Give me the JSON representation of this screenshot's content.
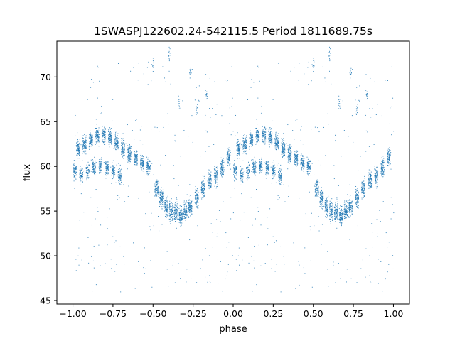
{
  "chart_data": {
    "type": "scatter",
    "title": "1SWASPJ122602.24-542115.5 Period 1811689.75s",
    "xlabel": "phase",
    "ylabel": "flux",
    "xlim": [
      -1.1,
      1.1
    ],
    "ylim": [
      44.6,
      74.0
    ],
    "x_ticks": [
      -1.0,
      -0.75,
      -0.5,
      -0.25,
      0.0,
      0.25,
      0.5,
      0.75,
      1.0
    ],
    "x_tick_labels": [
      "−1.00",
      "−0.75",
      "−0.50",
      "−0.25",
      "0.00",
      "0.25",
      "0.50",
      "0.75",
      "1.00"
    ],
    "y_ticks": [
      45,
      50,
      55,
      60,
      65,
      70
    ],
    "y_tick_labels": [
      "45",
      "50",
      "55",
      "60",
      "65",
      "70"
    ],
    "grid": false,
    "point_color": "#1f77b4",
    "series": [
      {
        "phase_domain": [
          0.0,
          1.0
        ],
        "mirrored": true,
        "upper_clumps": [
          {
            "x": 0.03,
            "y": 62.0
          },
          {
            "x": 0.07,
            "y": 62.5
          },
          {
            "x": 0.11,
            "y": 63.0
          },
          {
            "x": 0.15,
            "y": 63.5
          },
          {
            "x": 0.19,
            "y": 63.5
          },
          {
            "x": 0.23,
            "y": 63.2
          },
          {
            "x": 0.27,
            "y": 62.8
          },
          {
            "x": 0.31,
            "y": 62.0
          },
          {
            "x": 0.35,
            "y": 61.5
          },
          {
            "x": 0.39,
            "y": 61.0
          },
          {
            "x": 0.43,
            "y": 60.5
          },
          {
            "x": 0.47,
            "y": 60.0
          }
        ],
        "middle_clumps": [
          {
            "x": 0.01,
            "y": 59.5
          },
          {
            "x": 0.05,
            "y": 59.0
          },
          {
            "x": 0.09,
            "y": 59.5
          },
          {
            "x": 0.13,
            "y": 60.0
          },
          {
            "x": 0.17,
            "y": 60.0
          },
          {
            "x": 0.21,
            "y": 59.8
          },
          {
            "x": 0.25,
            "y": 59.5
          },
          {
            "x": 0.29,
            "y": 59.0
          }
        ],
        "lower_clumps": [
          {
            "x": 0.52,
            "y": 57.5
          },
          {
            "x": 0.55,
            "y": 56.5
          },
          {
            "x": 0.58,
            "y": 55.5
          },
          {
            "x": 0.61,
            "y": 55.0
          },
          {
            "x": 0.64,
            "y": 55.0
          },
          {
            "x": 0.67,
            "y": 54.5
          },
          {
            "x": 0.7,
            "y": 55.0
          },
          {
            "x": 0.73,
            "y": 55.5
          },
          {
            "x": 0.77,
            "y": 56.5
          },
          {
            "x": 0.81,
            "y": 57.5
          },
          {
            "x": 0.85,
            "y": 58.5
          },
          {
            "x": 0.89,
            "y": 59.0
          },
          {
            "x": 0.93,
            "y": 60.0
          },
          {
            "x": 0.97,
            "y": 61.0
          }
        ],
        "outlier_clusters": [
          {
            "x": 0.6,
            "y": 72.5
          },
          {
            "x": 0.5,
            "y": 71.5
          },
          {
            "x": 0.73,
            "y": 70.5
          },
          {
            "x": 0.77,
            "y": 66.5
          },
          {
            "x": 0.66,
            "y": 67.0
          },
          {
            "x": 0.83,
            "y": 68.0
          }
        ]
      }
    ]
  }
}
